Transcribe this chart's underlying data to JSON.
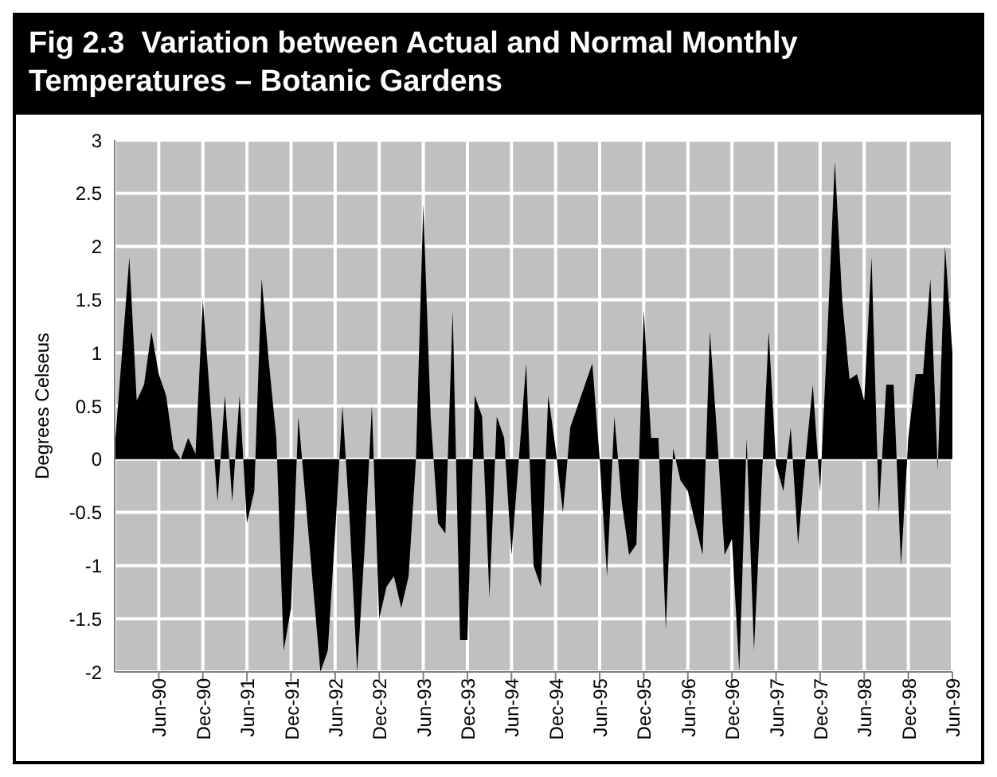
{
  "chart_data": {
    "type": "area",
    "title": "Fig 2.3  Variation between Actual and Normal Monthly Temperatures – Botanic Gardens",
    "ylabel": "Degrees Celseus",
    "categories": [
      null,
      null,
      null,
      null,
      null,
      null,
      "Jun-90",
      null,
      null,
      null,
      null,
      null,
      "Dec-90",
      null,
      null,
      null,
      null,
      null,
      "Jun-91",
      null,
      null,
      null,
      null,
      null,
      "Dec-91",
      null,
      null,
      null,
      null,
      null,
      "Jun-92",
      null,
      null,
      null,
      null,
      null,
      "Dec-92",
      null,
      null,
      null,
      null,
      null,
      "Jun-93",
      null,
      null,
      null,
      null,
      null,
      "Dec-93",
      null,
      null,
      null,
      null,
      null,
      "Jun-94",
      null,
      null,
      null,
      null,
      null,
      "Dec-94",
      null,
      null,
      null,
      null,
      null,
      "Jun-95",
      null,
      null,
      null,
      null,
      null,
      "Dec-95",
      null,
      null,
      null,
      null,
      null,
      "Jun-96",
      null,
      null,
      null,
      null,
      null,
      "Dec-96",
      null,
      null,
      null,
      null,
      null,
      "Jun-97",
      null,
      null,
      null,
      null,
      null,
      "Dec-97",
      null,
      null,
      null,
      null,
      null,
      "Jun-98",
      null,
      null,
      null,
      null,
      null,
      "Dec-98",
      null,
      null,
      null,
      null,
      null,
      "Jun-99"
    ],
    "series": [
      {
        "color": "#000000",
        "values": [
          0.1,
          1.0,
          1.9,
          0.55,
          0.7,
          1.2,
          0.8,
          0.6,
          0.1,
          0.0,
          0.2,
          0.05,
          1.5,
          0.55,
          -0.4,
          0.6,
          -0.4,
          0.6,
          -0.6,
          -0.3,
          1.7,
          0.9,
          0.2,
          -1.8,
          -1.4,
          0.4,
          -0.4,
          -1.2,
          -2.0,
          -1.8,
          -0.7,
          0.5,
          -0.6,
          -2.0,
          -0.85,
          0.5,
          -1.5,
          -1.2,
          -1.1,
          -1.4,
          -1.1,
          0.0,
          2.4,
          0.4,
          -0.6,
          -0.7,
          1.4,
          -1.7,
          -1.7,
          0.6,
          0.4,
          -1.3,
          0.4,
          0.2,
          -0.9,
          0.0,
          0.9,
          -1.0,
          -1.2,
          0.6,
          0.1,
          -0.5,
          0.3,
          0.5,
          0.7,
          0.9,
          0.0,
          -1.1,
          0.4,
          -0.4,
          -0.9,
          -0.8,
          1.4,
          0.2,
          0.2,
          -1.6,
          0.1,
          -0.2,
          -0.3,
          -0.6,
          -0.9,
          1.2,
          0.2,
          -0.9,
          -0.75,
          -2.0,
          0.2,
          -1.8,
          -0.3,
          1.2,
          -0.05,
          -0.3,
          0.3,
          -0.8,
          0.0,
          0.7,
          -0.3,
          1.2,
          2.8,
          1.5,
          0.75,
          0.8,
          0.55,
          1.9,
          -0.5,
          0.7,
          0.7,
          -1.0,
          0.2,
          0.8,
          0.8,
          1.7,
          -0.1,
          2.0,
          1.0
        ]
      }
    ],
    "ylim": [
      -2,
      3
    ],
    "yticks": [
      -2,
      -1.5,
      -1,
      -0.5,
      0,
      0.5,
      1,
      1.5,
      2,
      2.5,
      3
    ],
    "grid": true
  }
}
